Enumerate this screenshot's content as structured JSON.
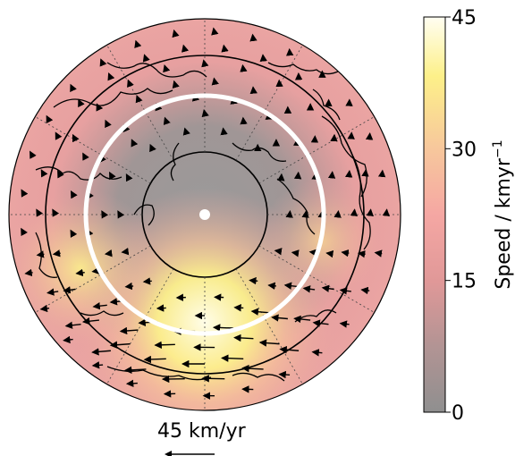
{
  "colorbar": {
    "label": "Speed / kmyr",
    "label_superscript": "−1",
    "min": 0,
    "max": 45,
    "ticks": [
      {
        "value": 0,
        "label": "0"
      },
      {
        "value": 15,
        "label": "15"
      },
      {
        "value": 30,
        "label": "30"
      },
      {
        "value": 45,
        "label": "45"
      }
    ],
    "colors": [
      "#8f8f8f",
      "#b39494",
      "#e09898",
      "#f5a7a3",
      "#f7c89c",
      "#fdf089",
      "#fffef2"
    ]
  },
  "scale_arrow": {
    "label": "45 km/yr"
  },
  "map": {
    "projection": "north-polar-stereographic",
    "pole_marker": "white-dot",
    "highlight_circle_color": "#ffffff",
    "graticule_color": "#000000"
  }
}
